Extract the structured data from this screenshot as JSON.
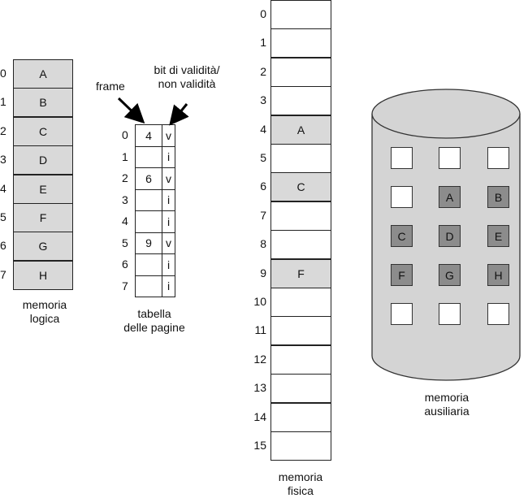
{
  "logical_memory": {
    "caption": "memoria\nlogica",
    "entries": [
      {
        "index": "0",
        "page": "A"
      },
      {
        "index": "1",
        "page": "B"
      },
      {
        "index": "2",
        "page": "C"
      },
      {
        "index": "3",
        "page": "D"
      },
      {
        "index": "4",
        "page": "E"
      },
      {
        "index": "5",
        "page": "F"
      },
      {
        "index": "6",
        "page": "G"
      },
      {
        "index": "7",
        "page": "H"
      }
    ]
  },
  "page_table": {
    "caption": "tabella\ndelle pagine",
    "frame_label": "frame",
    "valid_bit_label": "bit di validità/\nnon validità",
    "entries": [
      {
        "index": "0",
        "frame": "4",
        "bit": "v"
      },
      {
        "index": "1",
        "frame": "",
        "bit": "i"
      },
      {
        "index": "2",
        "frame": "6",
        "bit": "v"
      },
      {
        "index": "3",
        "frame": "",
        "bit": "i"
      },
      {
        "index": "4",
        "frame": "",
        "bit": "i"
      },
      {
        "index": "5",
        "frame": "9",
        "bit": "v"
      },
      {
        "index": "6",
        "frame": "",
        "bit": "i"
      },
      {
        "index": "7",
        "frame": "",
        "bit": "i"
      }
    ]
  },
  "physical_memory": {
    "caption": "memoria\nfisica",
    "frames": [
      {
        "index": "0",
        "content": ""
      },
      {
        "index": "1",
        "content": ""
      },
      {
        "index": "2",
        "content": ""
      },
      {
        "index": "3",
        "content": ""
      },
      {
        "index": "4",
        "content": "A"
      },
      {
        "index": "5",
        "content": ""
      },
      {
        "index": "6",
        "content": "C"
      },
      {
        "index": "7",
        "content": ""
      },
      {
        "index": "8",
        "content": ""
      },
      {
        "index": "9",
        "content": "F"
      },
      {
        "index": "10",
        "content": ""
      },
      {
        "index": "11",
        "content": ""
      },
      {
        "index": "12",
        "content": ""
      },
      {
        "index": "13",
        "content": ""
      },
      {
        "index": "14",
        "content": ""
      },
      {
        "index": "15",
        "content": ""
      }
    ]
  },
  "backing_store": {
    "caption": "memoria\nausiliaria",
    "grid": [
      [
        "",
        "",
        ""
      ],
      [
        "",
        "A",
        "B"
      ],
      [
        "C",
        "D",
        "E"
      ],
      [
        "F",
        "G",
        "H"
      ],
      [
        "",
        "",
        ""
      ]
    ]
  },
  "colors": {
    "cell_gray": "#d9d9d9",
    "disk_body": "#d4d4d4",
    "disk_cell_filled": "#8c8c8c"
  }
}
